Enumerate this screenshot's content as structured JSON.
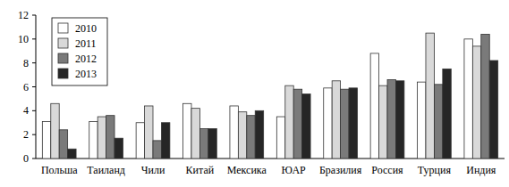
{
  "chart_data": {
    "type": "bar",
    "categories": [
      "Польша",
      "Таиланд",
      "Чили",
      "Китай",
      "Мексика",
      "ЮАР",
      "Бразилия",
      "Россия",
      "Турция",
      "Индия"
    ],
    "series": [
      {
        "name": "2010",
        "color": "#ffffff",
        "values": [
          3.1,
          3.1,
          3.0,
          4.6,
          4.4,
          3.5,
          5.9,
          8.8,
          6.4,
          10.0
        ]
      },
      {
        "name": "2011",
        "color": "#d9d9d9",
        "values": [
          4.6,
          3.5,
          4.4,
          4.2,
          3.9,
          6.1,
          6.5,
          6.1,
          10.5,
          9.4
        ]
      },
      {
        "name": "2012",
        "color": "#7a7a7a",
        "values": [
          2.4,
          3.6,
          1.5,
          2.5,
          3.6,
          5.8,
          5.8,
          6.6,
          6.2,
          10.4
        ]
      },
      {
        "name": "2013",
        "color": "#262626",
        "values": [
          0.8,
          1.7,
          3.0,
          2.5,
          4.0,
          5.4,
          5.9,
          6.5,
          7.5,
          8.2
        ]
      }
    ],
    "ylim": [
      0,
      12
    ],
    "yticks": [
      0,
      2,
      4,
      6,
      8,
      10,
      12
    ],
    "grid": false,
    "legend": "upper left"
  }
}
